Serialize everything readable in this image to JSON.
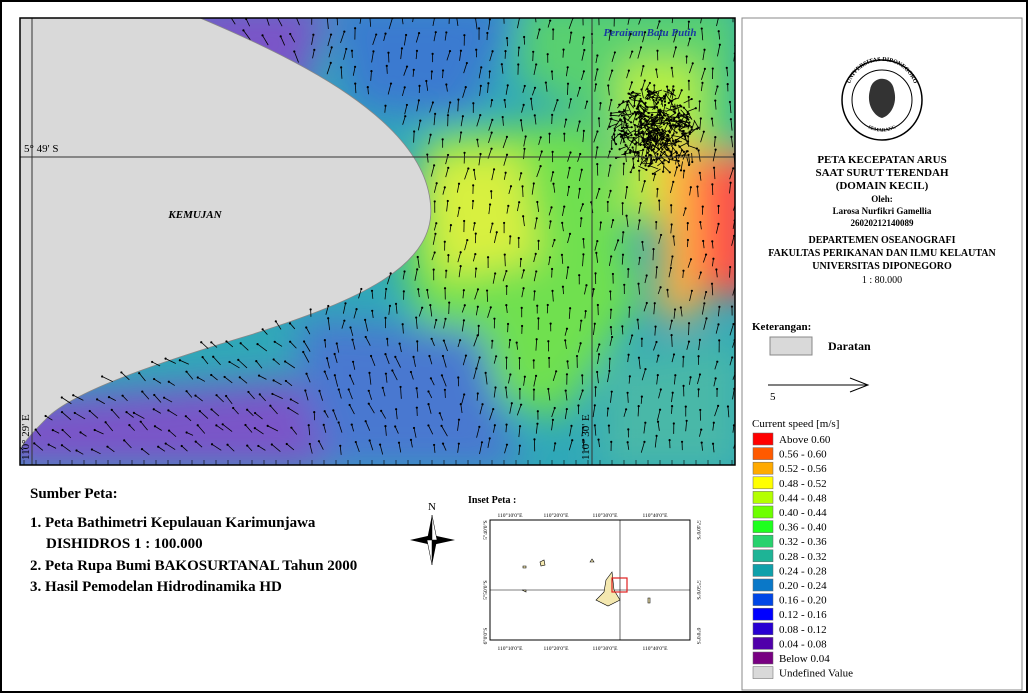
{
  "map": {
    "sea": "Perairan Batu Putih",
    "latitude": "5° 49' S",
    "island": "KEMUJAN",
    "lon_left": "110° 29' E",
    "lon_right": "110° 30' E"
  },
  "logo": {
    "top": "UNIVERSITAS DIPONEGORO",
    "bottom": "SEMARANG"
  },
  "title_block": {
    "lines": [
      "PETA KECEPATAN ARUS",
      "SAAT SURUT TERENDAH",
      "(DOMAIN KECIL)",
      "Oleh:",
      "Larosa Nurfikri Gamellia",
      "26020212140089",
      "DEPARTEMEN OSEANOGRAFI",
      "FAKULTAS PERIKANAN DAN ILMU KELAUTAN",
      "UNIVERSITAS DIPONEGORO",
      "1 : 80.000"
    ]
  },
  "legend": {
    "heading": "Keterangan:",
    "land": "Daratan",
    "arrow_scale": "5",
    "speed_title": "Current speed [m/s]",
    "items": [
      {
        "label": "Above 0.60",
        "color": "#ff0000"
      },
      {
        "label": "0.56 - 0.60",
        "color": "#ff5a00"
      },
      {
        "label": "0.52 - 0.56",
        "color": "#ffaa00"
      },
      {
        "label": "0.48 - 0.52",
        "color": "#ffff00"
      },
      {
        "label": "0.44 - 0.48",
        "color": "#b4ff00"
      },
      {
        "label": "0.40 - 0.44",
        "color": "#6eff00"
      },
      {
        "label": "0.36 - 0.40",
        "color": "#1eff1e"
      },
      {
        "label": "0.32 - 0.36",
        "color": "#28d26e"
      },
      {
        "label": "0.28 - 0.32",
        "color": "#1eb496"
      },
      {
        "label": "0.24 - 0.28",
        "color": "#0fa0aa"
      },
      {
        "label": "0.20 - 0.24",
        "color": "#0a78c8"
      },
      {
        "label": "0.16 - 0.20",
        "color": "#0046e6"
      },
      {
        "label": "0.12 - 0.16",
        "color": "#0000ff"
      },
      {
        "label": "0.08 - 0.12",
        "color": "#2800d2"
      },
      {
        "label": "0.04 - 0.08",
        "color": "#5000aa"
      },
      {
        "label": "Below 0.04",
        "color": "#780082"
      },
      {
        "label": "Undefined Value",
        "color": "#d9d9d9"
      }
    ]
  },
  "sources": {
    "heading": "Sumber Peta:",
    "lines": [
      "1. Peta Bathimetri Kepulauan Karimunjawa",
      "DISHIDROS 1 : 100.000",
      "2. Peta Rupa Bumi BAKOSURTANAL Tahun 2000",
      "3. Hasil Pemodelan Hidrodinamika HD"
    ]
  },
  "north": "N",
  "inset": {
    "title": "Inset Peta :",
    "x_labels": [
      "110°10'0\"E",
      "110°20'0\"E",
      "110°30'0\"E",
      "110°40'0\"E"
    ],
    "y_labels": [
      "5°40'0\"S",
      "5°50'0\"S",
      "6°0'0\"S"
    ]
  }
}
